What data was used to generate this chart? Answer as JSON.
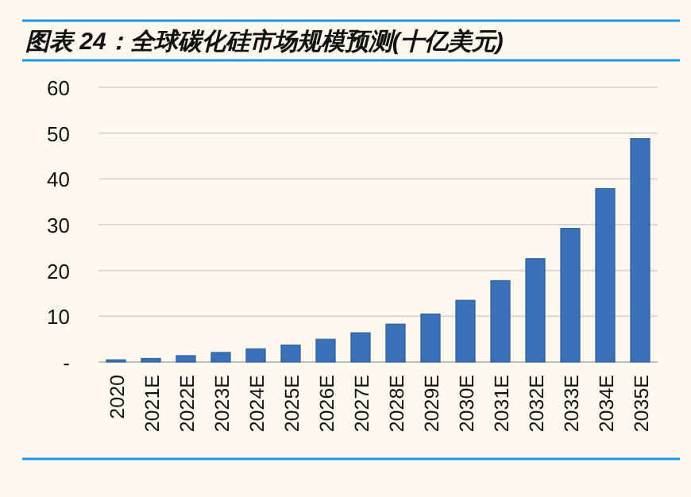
{
  "chart_data": {
    "type": "bar",
    "title": "图表 24：全球碳化硅市场规模预测(十亿美元)",
    "categories": [
      "2020",
      "2021E",
      "2022E",
      "2023E",
      "2024E",
      "2025E",
      "2026E",
      "2027E",
      "2028E",
      "2029E",
      "2030E",
      "2031E",
      "2032E",
      "2033E",
      "2034E",
      "2035E"
    ],
    "values": [
      0.5,
      0.8,
      1.4,
      2.1,
      2.9,
      3.7,
      5.0,
      6.4,
      8.3,
      10.5,
      13.5,
      17.8,
      22.6,
      29.2,
      37.9,
      48.8
    ],
    "color": "#3a72b8",
    "ylim": [
      0,
      60
    ],
    "yticks": [
      {
        "value": 0,
        "label": "-"
      },
      10,
      20,
      30,
      40,
      50,
      60
    ],
    "grid": "y"
  }
}
